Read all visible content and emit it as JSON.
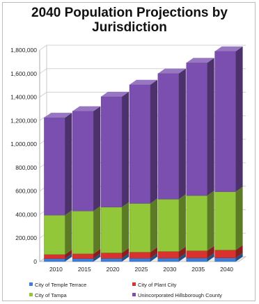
{
  "chart_data": {
    "type": "bar",
    "stacked": true,
    "three_d": true,
    "title": "2040 Population Projections by Jurisdiction",
    "xlabel": "",
    "ylabel": "",
    "categories": [
      "2010",
      "2015",
      "2020",
      "2025",
      "2030",
      "2035",
      "2040"
    ],
    "ylim": [
      0,
      1800000
    ],
    "yticks": [
      0,
      200000,
      400000,
      600000,
      800000,
      1000000,
      1200000,
      1400000,
      1600000,
      1800000
    ],
    "ytick_labels": [
      "0",
      "200,000",
      "400,000",
      "600,000",
      "800,000",
      "1,000,000",
      "1,200,000",
      "1,400,000",
      "1,600,000",
      "1,800,000"
    ],
    "grid": true,
    "legend_position": "bottom",
    "series": [
      {
        "name": "City of Temple Terrace",
        "color": "#3d7fd6",
        "values": [
          25000,
          26000,
          27000,
          28000,
          29000,
          30000,
          31000
        ]
      },
      {
        "name": "City of Plant City",
        "color": "#d9322e",
        "values": [
          35000,
          40000,
          47000,
          52000,
          57000,
          62000,
          67000
        ]
      },
      {
        "name": "City of Tampa",
        "color": "#92c73a",
        "values": [
          335000,
          365000,
          390000,
          415000,
          445000,
          470000,
          497000
        ]
      },
      {
        "name": "Unincorporated Hillsborough County",
        "color": "#7b4fb0",
        "values": [
          830000,
          850000,
          940000,
          1010000,
          1070000,
          1130000,
          1195000
        ]
      }
    ]
  }
}
